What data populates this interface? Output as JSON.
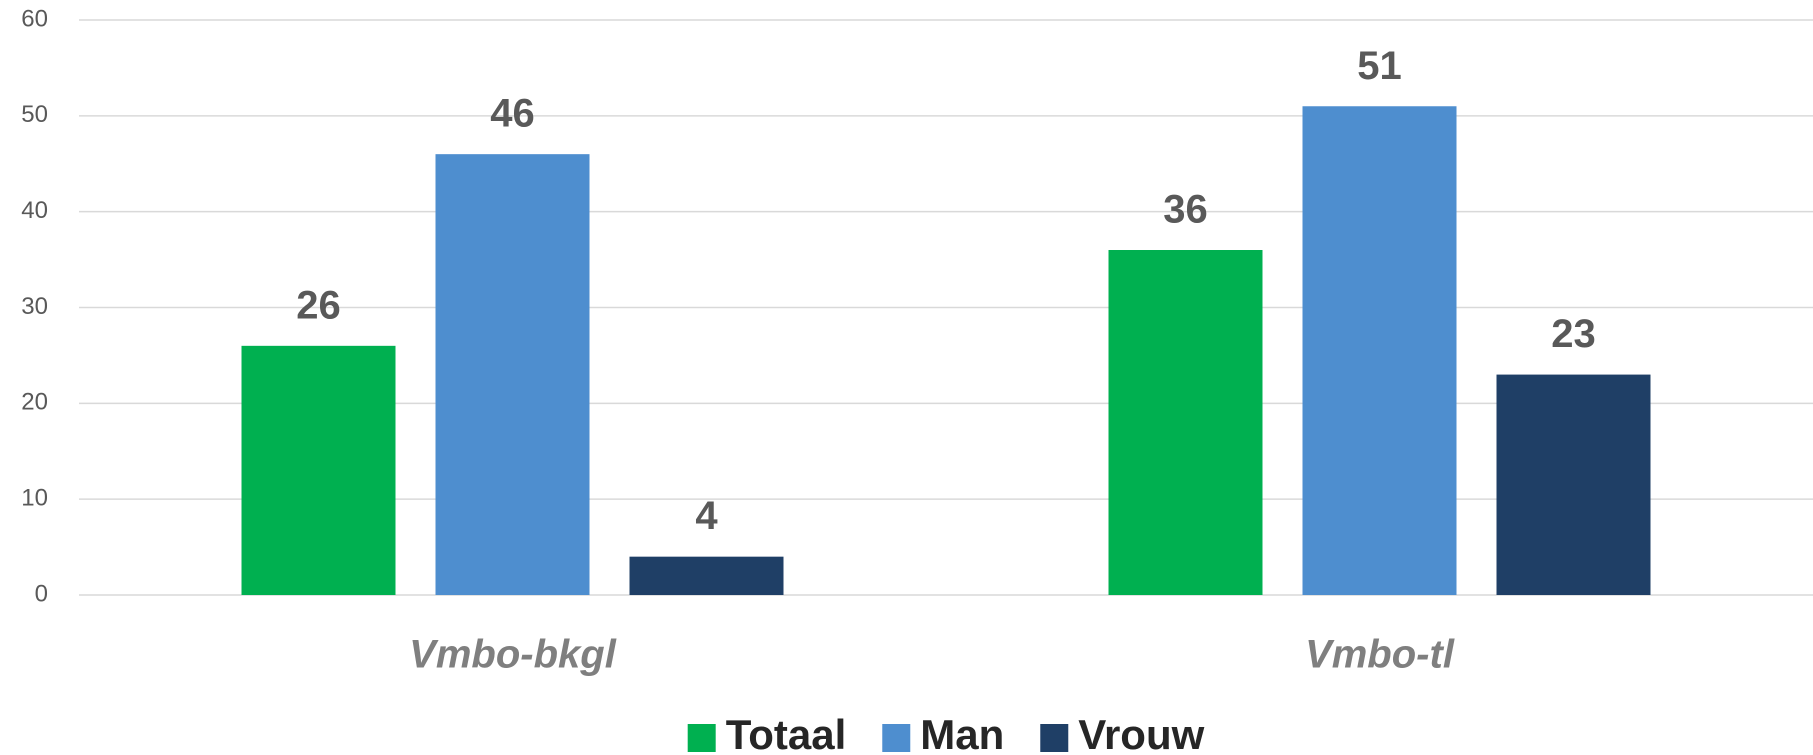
{
  "chart_data": {
    "type": "bar",
    "categories": [
      "Vmbo-bkgl",
      "Vmbo-tl"
    ],
    "series": [
      {
        "name": "Totaal",
        "color": "#00b050",
        "values": [
          26,
          36
        ]
      },
      {
        "name": "Man",
        "color": "#4e8ecf",
        "values": [
          46,
          51
        ]
      },
      {
        "name": "Vrouw",
        "color": "#1f3f66",
        "values": [
          4,
          23
        ]
      }
    ],
    "ylim": [
      0,
      60
    ],
    "yticks": [
      0,
      10,
      20,
      30,
      40,
      50,
      60
    ],
    "grid": true,
    "legend": "bottom"
  }
}
